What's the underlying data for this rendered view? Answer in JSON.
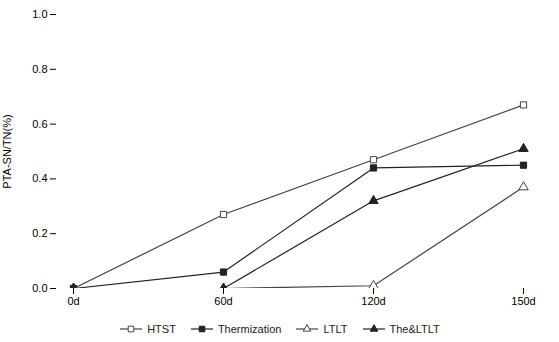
{
  "chart_data": {
    "type": "line",
    "categories": [
      "0d",
      "60d",
      "120d",
      "150d"
    ],
    "series": [
      {
        "name": "HTST",
        "color": "#444444",
        "marker": "square-open",
        "values": [
          0.0,
          0.27,
          0.47,
          0.67
        ]
      },
      {
        "name": "Thermization",
        "color": "#222222",
        "marker": "square",
        "values": [
          0.0,
          0.06,
          0.44,
          0.45
        ]
      },
      {
        "name": "LTLT",
        "color": "#444444",
        "marker": "triangle-open",
        "values": [
          0.0,
          0.0,
          0.01,
          0.37
        ]
      },
      {
        "name": "The&LTLT",
        "color": "#222222",
        "marker": "triangle",
        "values": [
          0.0,
          0.0,
          0.32,
          0.51
        ]
      }
    ],
    "ylabel": "PTA-SN/TN(%)",
    "ylim": [
      0.0,
      1.0
    ],
    "yticks": [
      {
        "value": 0.0,
        "label": "0.0"
      },
      0.2,
      0.4,
      0.6,
      0.8,
      {
        "value": 1.0,
        "label": "1.0"
      }
    ],
    "grid": false,
    "legend": "bottom"
  }
}
